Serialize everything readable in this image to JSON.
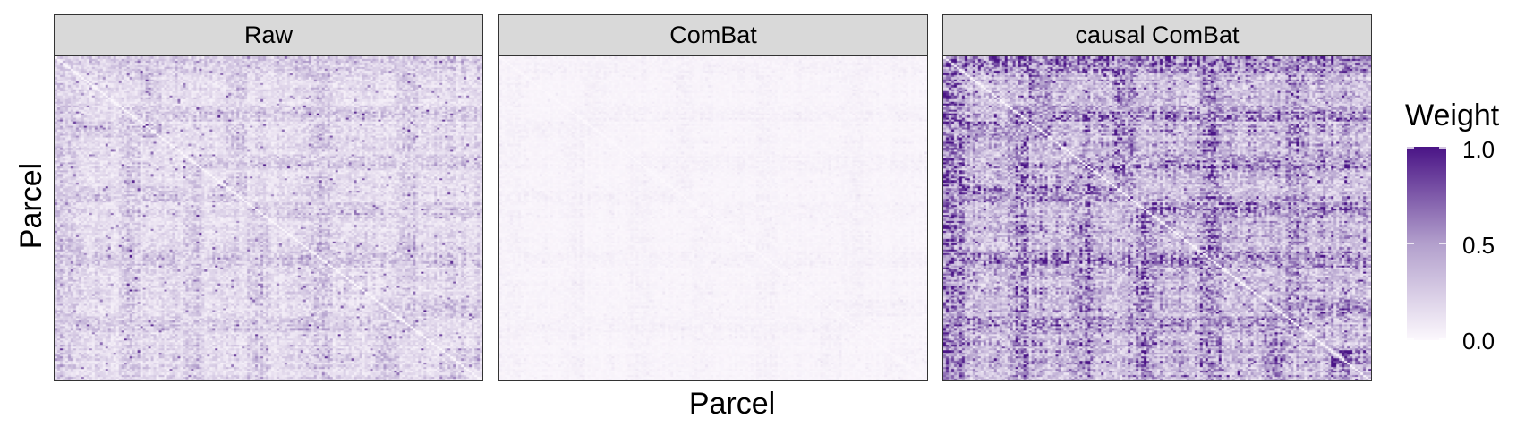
{
  "chart_data": [
    {
      "type": "heatmap",
      "title": "Raw",
      "xlabel": "Parcel",
      "ylabel": "Parcel",
      "colorscale": {
        "low": "#fcf8fd",
        "high": "#4a1486"
      },
      "value_range": [
        0,
        1
      ],
      "typical_weight": 0.2,
      "diagonal": "visible"
    },
    {
      "type": "heatmap",
      "title": "ComBat",
      "xlabel": "Parcel",
      "ylabel": "Parcel",
      "colorscale": {
        "low": "#fcf8fd",
        "high": "#4a1486"
      },
      "value_range": [
        0,
        1
      ],
      "typical_weight": 0.03,
      "diagonal": "faint"
    },
    {
      "type": "heatmap",
      "title": "causal ComBat",
      "xlabel": "Parcel",
      "ylabel": "Parcel",
      "colorscale": {
        "low": "#fcf8fd",
        "high": "#4a1486"
      },
      "value_range": [
        0,
        1
      ],
      "typical_weight": 0.45,
      "diagonal": "visible"
    }
  ],
  "axes": {
    "xlabel": "Parcel",
    "ylabel": "Parcel"
  },
  "legend": {
    "title": "Weight",
    "ticks": [
      "1.0",
      "0.5",
      "0.0"
    ],
    "tick_values": [
      1.0,
      0.5,
      0.0
    ],
    "placement": "right",
    "low_color": "#fcf8fd",
    "high_color": "#4a1486"
  }
}
